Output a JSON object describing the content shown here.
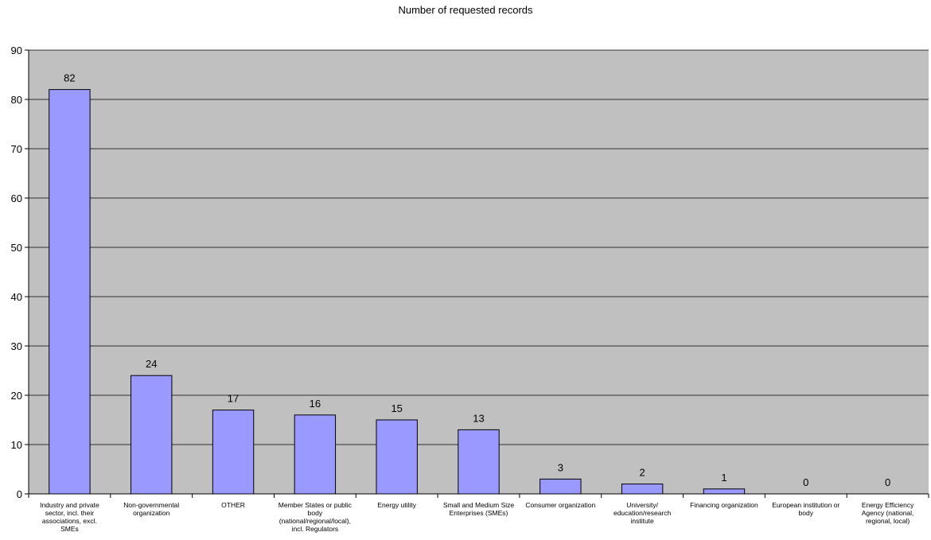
{
  "chart_data": {
    "type": "bar",
    "title": "Number of requested records",
    "xlabel": "",
    "ylabel": "",
    "ylim": [
      0,
      90
    ],
    "yticks": [
      0,
      10,
      20,
      30,
      40,
      50,
      60,
      70,
      80,
      90
    ],
    "grid": true,
    "categories": [
      "Industry and private sector, incl. their associations, excl. SMEs",
      "Non-governmental organization",
      "OTHER",
      "Member States or public body (national/regional/local), incl. Regulators",
      "Energy utility",
      "Small and Medium Size Enterprises (SMEs)",
      "Consumer organization",
      "University/ education/research institute",
      "Financing organization",
      "European institution or body",
      "Energy Efficiency Agency (national, regional, local)"
    ],
    "category_lines": [
      "Industry and private\nsector, incl. their\nassociations, excl.\nSMEs",
      "Non-governmental\norganization",
      "OTHER",
      "Member States or public\nbody\n(national/regional/local),\nincl. Regulators",
      "Energy utility",
      "Small and Medium Size\nEnterprises (SMEs)",
      "Consumer organization",
      "University/\neducation/research\ninstitute",
      "Financing organization",
      "European institution or\nbody",
      "Energy Efficiency\nAgency (national,\nregional, local)"
    ],
    "values": [
      82,
      24,
      17,
      16,
      15,
      13,
      3,
      2,
      1,
      0,
      0
    ],
    "colors": {
      "plot_bg": "#c0c0c0",
      "bar_fill": "#9999ff",
      "bar_stroke": "#000000",
      "gridline": "#000000"
    }
  }
}
